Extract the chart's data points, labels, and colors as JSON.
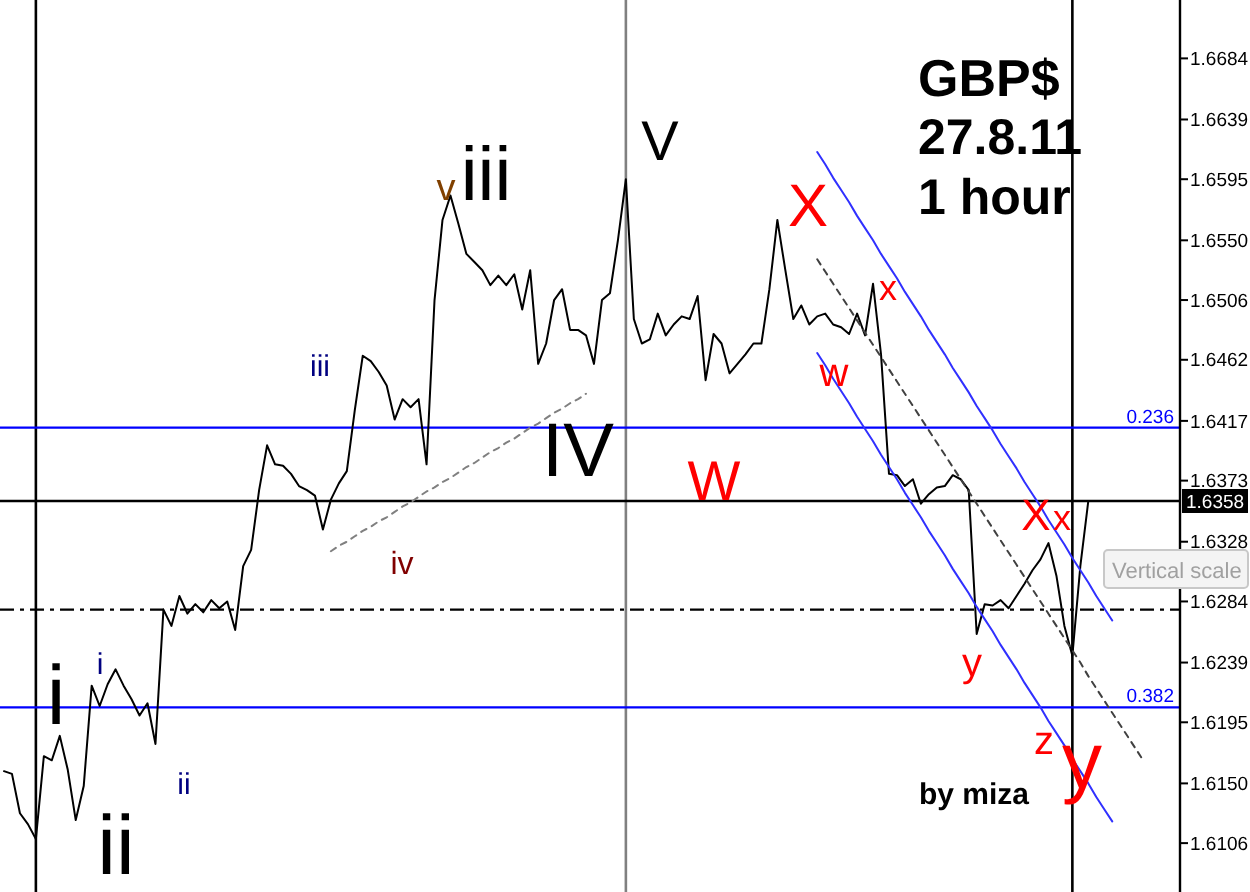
{
  "chart_data": {
    "type": "line",
    "title": "GBP$",
    "subtitle": "27.8.11 1 hour",
    "categories": [
      null,
      null,
      null,
      null,
      null,
      null,
      null,
      null,
      null,
      null,
      null,
      null,
      null,
      null,
      null,
      null,
      null,
      null,
      null,
      null,
      null,
      null,
      null,
      null,
      null,
      null,
      null,
      null,
      null,
      null,
      null,
      null,
      null,
      null,
      null,
      null,
      null,
      null,
      null,
      null,
      null,
      null,
      null,
      null,
      null,
      null,
      null,
      null,
      null,
      null,
      null,
      null,
      null,
      null,
      null,
      null,
      null,
      null,
      null,
      null,
      null,
      null,
      null,
      null,
      null,
      null,
      null,
      null,
      null,
      null,
      null,
      null,
      null,
      null,
      null,
      null,
      null,
      null,
      null,
      null,
      null,
      null,
      null,
      null,
      null,
      null,
      null,
      null,
      null,
      null,
      null,
      null,
      null,
      null,
      null,
      null,
      null,
      null,
      null,
      null,
      null,
      null,
      null,
      null,
      null,
      null,
      null,
      null,
      null,
      null,
      null,
      null,
      null,
      null,
      null,
      null,
      null,
      null,
      null,
      null,
      null,
      null,
      null,
      null,
      null,
      null,
      null,
      null,
      null,
      null,
      null,
      null,
      null,
      null,
      null,
      null,
      null,
      null,
      null,
      null,
      null,
      null,
      null,
      null,
      null,
      null,
      null,
      null
    ],
    "series": [
      {
        "color": "#000000",
        "values": [
          1.6159,
          1.6157,
          1.6128,
          1.612,
          1.6109,
          1.617,
          1.6167,
          1.6185,
          1.616,
          1.6123,
          1.6148,
          1.6222,
          1.6207,
          1.6223,
          1.6234,
          1.6222,
          1.6212,
          1.62,
          1.6209,
          1.6179,
          1.6278,
          1.6266,
          1.6288,
          1.6275,
          1.6282,
          1.6276,
          1.6285,
          1.6279,
          1.6284,
          1.6263,
          1.631,
          1.6322,
          1.6366,
          1.6399,
          1.6385,
          1.6384,
          1.6378,
          1.6369,
          1.6366,
          1.6362,
          1.6337,
          1.6359,
          1.6371,
          1.638,
          1.6425,
          1.6465,
          1.6461,
          1.6453,
          1.6443,
          1.6418,
          1.6433,
          1.6427,
          1.6433,
          1.6385,
          1.6506,
          1.6565,
          1.6583,
          1.6562,
          1.654,
          1.6534,
          1.6528,
          1.6517,
          1.6524,
          1.6517,
          1.6525,
          1.6499,
          1.6528,
          1.6459,
          1.6474,
          1.6506,
          1.6514,
          1.6484,
          1.6484,
          1.648,
          1.6459,
          1.6506,
          1.6511,
          1.655,
          1.6595,
          1.6492,
          1.6474,
          1.6477,
          1.6496,
          1.648,
          1.6488,
          1.6494,
          1.6492,
          1.6509,
          1.6447,
          1.6481,
          1.6474,
          1.6452,
          1.6459,
          1.6466,
          1.6474,
          1.6474,
          1.6514,
          1.6565,
          1.6528,
          1.6492,
          1.6502,
          1.6488,
          1.6494,
          1.6496,
          1.6488,
          1.6486,
          1.6481,
          1.6496,
          1.648,
          1.6518,
          1.6466,
          1.6378,
          1.6377,
          1.6369,
          1.6374,
          1.6356,
          1.6363,
          1.6368,
          1.6369,
          1.6377,
          1.6374,
          1.6366,
          1.626,
          1.6282,
          1.6281,
          1.6285,
          1.6279,
          1.6288,
          1.6297,
          1.6307,
          1.6315,
          1.6327,
          1.6303,
          1.6266,
          1.6244,
          1.631,
          1.6358,
          null,
          null,
          null,
          null,
          null,
          null,
          null,
          null,
          null,
          null,
          null
        ]
      },
      {
        "type": "line",
        "color": "#3030ff",
        "values": [
          null,
          null,
          null,
          null,
          null,
          null,
          null,
          null,
          null,
          null,
          null,
          null,
          null,
          null,
          null,
          null,
          null,
          null,
          null,
          null,
          null,
          null,
          null,
          null,
          null,
          null,
          null,
          null,
          null,
          null,
          null,
          null,
          null,
          null,
          null,
          null,
          null,
          null,
          null,
          null,
          null,
          null,
          null,
          null,
          null,
          null,
          null,
          null,
          null,
          null,
          null,
          null,
          null,
          null,
          null,
          null,
          null,
          null,
          null,
          null,
          null,
          null,
          null,
          null,
          null,
          null,
          null,
          null,
          null,
          null,
          null,
          null,
          null,
          null,
          null,
          null,
          null,
          null,
          null,
          null,
          null,
          null,
          null,
          null,
          null,
          null,
          null,
          null,
          null,
          null,
          null,
          null,
          null,
          null,
          null,
          null,
          null,
          null,
          null,
          null,
          null,
          null,
          1.6615,
          1.6606,
          1.6596,
          1.6587,
          1.6578,
          1.6568,
          1.6559,
          1.655,
          1.654,
          1.6531,
          1.6522,
          1.6512,
          1.6503,
          1.6494,
          1.6484,
          1.6475,
          1.6466,
          1.6456,
          1.6447,
          1.6438,
          1.6428,
          1.6419,
          1.641,
          1.64,
          1.6391,
          1.6382,
          1.6372,
          1.6363,
          1.6354,
          1.6344,
          1.6335,
          1.6326,
          1.6316,
          1.6307,
          1.6298,
          1.6288,
          1.6279,
          1.627,
          null,
          null,
          null,
          null,
          null,
          null,
          null,
          null
        ]
      },
      {
        "type": "line",
        "color": "#3030ff",
        "values": [
          null,
          null,
          null,
          null,
          null,
          null,
          null,
          null,
          null,
          null,
          null,
          null,
          null,
          null,
          null,
          null,
          null,
          null,
          null,
          null,
          null,
          null,
          null,
          null,
          null,
          null,
          null,
          null,
          null,
          null,
          null,
          null,
          null,
          null,
          null,
          null,
          null,
          null,
          null,
          null,
          null,
          null,
          null,
          null,
          null,
          null,
          null,
          null,
          null,
          null,
          null,
          null,
          null,
          null,
          null,
          null,
          null,
          null,
          null,
          null,
          null,
          null,
          null,
          null,
          null,
          null,
          null,
          null,
          null,
          null,
          null,
          null,
          null,
          null,
          null,
          null,
          null,
          null,
          null,
          null,
          null,
          null,
          null,
          null,
          null,
          null,
          null,
          null,
          null,
          null,
          null,
          null,
          null,
          null,
          null,
          null,
          null,
          null,
          null,
          null,
          null,
          null,
          1.6467,
          1.6458,
          1.6448,
          1.6439,
          1.643,
          1.642,
          1.6411,
          1.6402,
          1.6392,
          1.6383,
          1.6374,
          1.6364,
          1.6355,
          1.6346,
          1.6336,
          1.6327,
          1.6318,
          1.6308,
          1.6299,
          1.629,
          1.628,
          1.6271,
          1.6262,
          1.6252,
          1.6243,
          1.6234,
          1.6224,
          1.6215,
          1.6206,
          1.6196,
          1.6187,
          1.6178,
          1.6168,
          1.6159,
          1.615,
          1.614,
          1.6131,
          1.6122,
          null,
          null,
          null,
          null,
          null,
          null,
          null,
          null
        ]
      },
      {
        "type": "line",
        "color": "#404040",
        "line_style": "dotted",
        "values": [
          null,
          null,
          null,
          null,
          null,
          null,
          null,
          null,
          null,
          null,
          null,
          null,
          null,
          null,
          null,
          null,
          null,
          null,
          null,
          null,
          null,
          null,
          null,
          null,
          null,
          null,
          null,
          null,
          null,
          null,
          null,
          null,
          null,
          null,
          null,
          null,
          null,
          null,
          null,
          null,
          null,
          null,
          null,
          null,
          null,
          null,
          null,
          null,
          null,
          null,
          null,
          null,
          null,
          null,
          null,
          null,
          null,
          null,
          null,
          null,
          null,
          null,
          null,
          null,
          null,
          null,
          null,
          null,
          null,
          null,
          null,
          null,
          null,
          null,
          null,
          null,
          null,
          null,
          null,
          null,
          null,
          null,
          null,
          null,
          null,
          null,
          null,
          null,
          null,
          null,
          null,
          null,
          null,
          null,
          null,
          null,
          null,
          null,
          null,
          null,
          null,
          null,
          1.6536,
          1.6527,
          1.6518,
          1.6509,
          1.65,
          1.6491,
          1.6482,
          1.6473,
          1.6464,
          1.6455,
          1.6446,
          1.6437,
          1.6428,
          1.6419,
          1.641,
          1.6401,
          1.6392,
          1.6383,
          1.6374,
          1.6365,
          1.6356,
          1.6347,
          1.6338,
          1.6329,
          1.632,
          1.6311,
          1.6302,
          1.6293,
          1.6284,
          1.6275,
          1.6266,
          1.6257,
          1.6248,
          1.6239,
          1.6229,
          1.622,
          1.6211,
          1.6202,
          1.6193,
          1.6184,
          1.6175,
          1.6166,
          null,
          null,
          null,
          null
        ]
      },
      {
        "type": "line",
        "color": "#808080",
        "line_style": "dotted",
        "values": [
          null,
          null,
          null,
          null,
          null,
          null,
          null,
          null,
          null,
          null,
          null,
          null,
          null,
          null,
          null,
          null,
          null,
          null,
          null,
          null,
          null,
          null,
          null,
          null,
          null,
          null,
          null,
          null,
          null,
          null,
          null,
          null,
          null,
          null,
          null,
          null,
          null,
          null,
          null,
          null,
          null,
          1.6321,
          1.6325,
          1.6328,
          1.6332,
          1.6336,
          1.6339,
          1.6343,
          1.6346,
          1.635,
          1.6354,
          1.6357,
          1.6361,
          1.6365,
          1.6368,
          1.6372,
          1.6375,
          1.6379,
          1.6383,
          1.6386,
          1.639,
          1.6394,
          1.6397,
          1.6401,
          1.6404,
          1.6408,
          1.6412,
          1.6415,
          1.6419,
          1.6423,
          1.6426,
          1.643,
          1.6433,
          1.6437,
          null,
          null,
          null,
          null,
          null,
          null,
          null,
          null,
          null,
          null,
          null,
          null,
          null,
          null,
          null,
          null,
          null,
          null,
          null,
          null,
          null,
          null,
          null,
          null,
          null,
          null,
          null,
          null,
          null,
          null,
          null,
          null,
          null,
          null,
          null,
          null,
          null,
          null,
          null,
          null,
          null,
          null,
          null,
          null,
          null,
          null,
          null,
          null,
          null,
          null,
          null,
          null,
          null,
          null,
          null,
          null,
          null,
          null,
          null,
          null,
          null,
          null,
          null,
          null,
          null,
          null,
          null,
          null,
          null,
          null,
          null,
          null,
          null,
          null
        ]
      }
    ],
    "ylim": [
      1.607,
      1.6727
    ],
    "yticks": [
      1.6106,
      {
        "value": 1.615,
        "label": "1.6150"
      },
      1.6195,
      1.6239,
      1.6284,
      1.6328,
      1.6373,
      1.6417,
      1.6462,
      1.6506,
      {
        "value": 1.655,
        "label": "1.6550"
      },
      1.6595,
      1.6639,
      1.6684
    ],
    "tick_labels": "y",
    "ref_lines": [
      {
        "axis": "y",
        "value": 1.6412,
        "color": "#0000ff"
      },
      {
        "axis": "y",
        "value": 1.6206,
        "color": "#0000ff"
      },
      {
        "axis": "y",
        "value": 1.6358,
        "label": "1.6358",
        "color": "#000000"
      },
      {
        "axis": "y",
        "value": 1.6278,
        "color": "#000000",
        "line_style": "dashed"
      }
    ],
    "annotations": [
      "i",
      "ii",
      "i",
      "ii",
      "iii",
      "iv",
      "v",
      "iii",
      "V",
      "IV",
      "X",
      "W",
      "x",
      "w",
      "X",
      "x",
      "y",
      "z",
      "y",
      "by miza",
      "Vertical scale",
      {
        "text": "0.236",
        "y": 1.6412
      },
      {
        "text": "0.382",
        "y": 1.6206
      }
    ]
  }
}
